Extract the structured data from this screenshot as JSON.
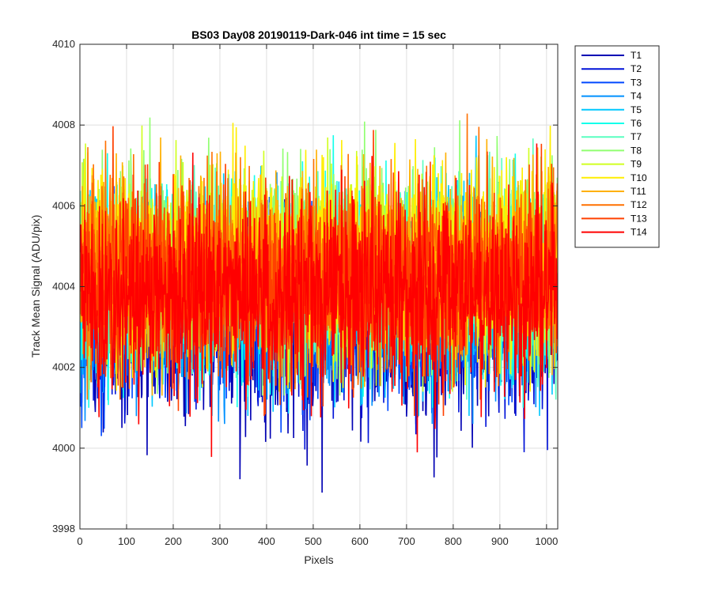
{
  "chart_data": {
    "type": "line",
    "title": "BS03 Day08 20190119-Dark-046 int time = 15 sec",
    "xlabel": "Pixels",
    "ylabel": "Track Mean Signal (ADU/pix)",
    "xlim": [
      0,
      1024
    ],
    "ylim": [
      3998,
      4010
    ],
    "xticks": [
      "0",
      "100",
      "200",
      "300",
      "400",
      "500",
      "600",
      "700",
      "800",
      "900",
      "1000"
    ],
    "yticks": [
      "3998",
      "4000",
      "4002",
      "4004",
      "4006",
      "4008",
      "4010"
    ],
    "grid": true,
    "legend_position": "outside-top-right",
    "x_start": 1,
    "x_end": 1024,
    "x_step": 1,
    "series": [
      {
        "name": "T1",
        "color": "#0000b4",
        "mean": 4003.0,
        "min_seen": 3998.9,
        "max_seen": 4006.2
      },
      {
        "name": "T2",
        "color": "#0012d8",
        "mean": 4003.2,
        "min_seen": 3999.9,
        "max_seen": 4006.4
      },
      {
        "name": "T3",
        "color": "#0048ff",
        "mean": 4003.4,
        "min_seen": 4000.3,
        "max_seen": 4006.8
      },
      {
        "name": "T4",
        "color": "#0090ff",
        "mean": 4003.7,
        "min_seen": 4000.6,
        "max_seen": 4007.6
      },
      {
        "name": "T5",
        "color": "#00c8ff",
        "mean": 4004.0,
        "min_seen": 4000.8,
        "max_seen": 4008.8
      },
      {
        "name": "T6",
        "color": "#14ffeb",
        "mean": 4004.2,
        "min_seen": 4001.0,
        "max_seen": 4009.0
      },
      {
        "name": "T7",
        "color": "#5affc0",
        "mean": 4004.4,
        "min_seen": 4001.2,
        "max_seen": 4008.4
      },
      {
        "name": "T8",
        "color": "#90ff70",
        "mean": 4004.5,
        "min_seen": 4001.3,
        "max_seen": 4009.0
      },
      {
        "name": "T9",
        "color": "#d0ff20",
        "mean": 4004.6,
        "min_seen": 4001.4,
        "max_seen": 4008.6
      },
      {
        "name": "T10",
        "color": "#ffee00",
        "mean": 4004.6,
        "min_seen": 4001.4,
        "max_seen": 4009.2
      },
      {
        "name": "T11",
        "color": "#ffb000",
        "mean": 4004.5,
        "min_seen": 4001.3,
        "max_seen": 4008.7
      },
      {
        "name": "T12",
        "color": "#ff7000",
        "mean": 4004.4,
        "min_seen": 4001.2,
        "max_seen": 4008.6
      },
      {
        "name": "T13",
        "color": "#ff4000",
        "mean": 4004.2,
        "min_seen": 4000.8,
        "max_seen": 4008.0
      },
      {
        "name": "T14",
        "color": "#ff0000",
        "mean": 4003.8,
        "min_seen": 3999.7,
        "max_seen": 4007.6
      }
    ]
  }
}
